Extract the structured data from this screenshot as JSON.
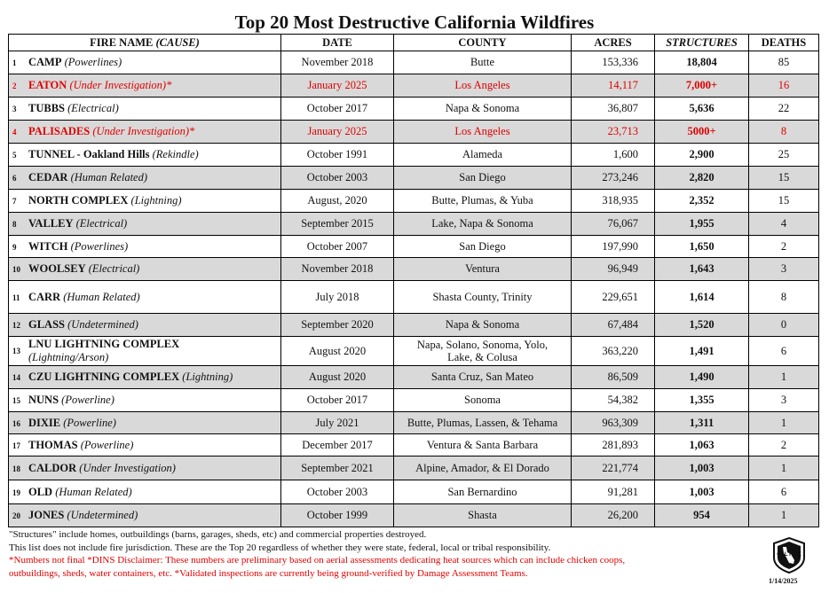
{
  "title": "Top 20 Most Destructive California Wildfires",
  "headers": {
    "name_plain": "FIRE NAME ",
    "name_italic": "(CAUSE)",
    "date": "DATE",
    "county": "COUNTY",
    "acres": "ACRES",
    "structures": "STRUCTURES",
    "deaths": "DEATHS"
  },
  "rows": [
    {
      "num": "1",
      "name": "CAMP",
      "cause": "(Powerlines)",
      "date": "November 2018",
      "county": "Butte",
      "acres": "153,336",
      "structures": "18,804",
      "deaths": "85"
    },
    {
      "num": "2",
      "name": "EATON",
      "cause": "(Under Investigation)*",
      "date": "January 2025",
      "county": "Los Angeles",
      "acres": "14,117",
      "structures": "7,000+",
      "deaths": "16"
    },
    {
      "num": "3",
      "name": "TUBBS",
      "cause": "(Electrical)",
      "date": "October 2017",
      "county": "Napa & Sonoma",
      "acres": "36,807",
      "structures": "5,636",
      "deaths": "22"
    },
    {
      "num": "4",
      "name": "PALISADES",
      "cause": "(Under Investigation)*",
      "date": "January 2025",
      "county": "Los Angeles",
      "acres": "23,713",
      "structures": "5000+",
      "deaths": "8"
    },
    {
      "num": "5",
      "name": "TUNNEL - Oakland Hills",
      "cause": "(Rekindle)",
      "date": "October 1991",
      "county": "Alameda",
      "acres": "1,600",
      "structures": "2,900",
      "deaths": "25"
    },
    {
      "num": "6",
      "name": "CEDAR",
      "cause": "(Human Related)",
      "date": "October 2003",
      "county": "San Diego",
      "acres": "273,246",
      "structures": "2,820",
      "deaths": "15"
    },
    {
      "num": "7",
      "name": "NORTH COMPLEX",
      "cause": "(Lightning)",
      "date": "August, 2020",
      "county": "Butte, Plumas, & Yuba",
      "acres": "318,935",
      "structures": "2,352",
      "deaths": "15"
    },
    {
      "num": "8",
      "name": "VALLEY",
      "cause": "(Electrical)",
      "date": "September 2015",
      "county": "Lake, Napa & Sonoma",
      "acres": "76,067",
      "structures": "1,955",
      "deaths": "4"
    },
    {
      "num": "9",
      "name": "WITCH",
      "cause": "(Powerlines)",
      "date": "October 2007",
      "county": "San Diego",
      "acres": "197,990",
      "structures": "1,650",
      "deaths": "2"
    },
    {
      "num": "10",
      "name": "WOOLSEY",
      "cause": "(Electrical)",
      "date": "November 2018",
      "county": "Ventura",
      "acres": "96,949",
      "structures": "1,643",
      "deaths": "3"
    },
    {
      "num": "11",
      "name": "CARR",
      "cause": "(Human Related)",
      "date": "July 2018",
      "county": "Shasta County, Trinity",
      "acres": "229,651",
      "structures": "1,614",
      "deaths": "8"
    },
    {
      "num": "12",
      "name": "GLASS",
      "cause": "(Undetermined)",
      "date": "September 2020",
      "county": "Napa & Sonoma",
      "acres": "67,484",
      "structures": "1,520",
      "deaths": "0"
    },
    {
      "num": "13",
      "name": "LNU LIGHTNING COMPLEX",
      "cause": "(Lightning/Arson)",
      "date": "August 2020",
      "county": "Napa, Solano, Sonoma, Yolo,",
      "county2": "Lake, & Colusa",
      "acres": "363,220",
      "structures": "1,491",
      "deaths": "6"
    },
    {
      "num": "14",
      "name": "CZU LIGHTNING COMPLEX",
      "cause": "(Lightning)",
      "date": "August 2020",
      "county": "Santa Cruz, San Mateo",
      "acres": "86,509",
      "structures": "1,490",
      "deaths": "1"
    },
    {
      "num": "15",
      "name": "NUNS",
      "cause": "(Powerline)",
      "date": "October 2017",
      "county": "Sonoma",
      "acres": "54,382",
      "structures": "1,355",
      "deaths": "3"
    },
    {
      "num": "16",
      "name": "DIXIE",
      "cause": "(Powerline)",
      "date": "July 2021",
      "county": "Butte, Plumas, Lassen, & Tehama",
      "acres": "963,309",
      "structures": "1,311",
      "deaths": "1"
    },
    {
      "num": "17",
      "name": "THOMAS",
      "cause": "(Powerline)",
      "date": "December 2017",
      "county": "Ventura & Santa Barbara",
      "acres": "281,893",
      "structures": "1,063",
      "deaths": "2"
    },
    {
      "num": "18",
      "name": "CALDOR",
      "cause": "(Under Investigation)",
      "date": "September 2021",
      "county": "Alpine, Amador, & El Dorado",
      "acres": "221,774",
      "structures": "1,003",
      "deaths": "1"
    },
    {
      "num": "19",
      "name": "OLD",
      "cause": "(Human Related)",
      "date": "October 2003",
      "county": "San Bernardino",
      "acres": "91,281",
      "structures": "1,003",
      "deaths": "6"
    },
    {
      "num": "20",
      "name": "JONES",
      "cause": "(Undetermined)",
      "date": "October 1999",
      "county": "Shasta",
      "acres": "26,200",
      "structures": "954",
      "deaths": "1"
    }
  ],
  "notes": {
    "line1": "\"Structures\" include homes, outbuildings (barns, garages, sheds, etc) and commercial properties destroyed.",
    "line2": "This list does not include fire jurisdiction.  These are the Top 20 regardless of whether they were state, federal, local or tribal responsibility.",
    "line3": "*Numbers not final *DINS Disclaimer: These numbers are preliminary based on aerial assessments dedicating heat sources which can include chicken coops,",
    "line4": "outbuildings, sheds, water containers, etc. *Validated inspections are currently being ground-verified by Damage Assessment Teams."
  },
  "logo_text": "CAL FIRE",
  "doc_date": "1/14/2025",
  "colors": {
    "red": "#e00000",
    "alt_row": "#d9d9d9"
  }
}
